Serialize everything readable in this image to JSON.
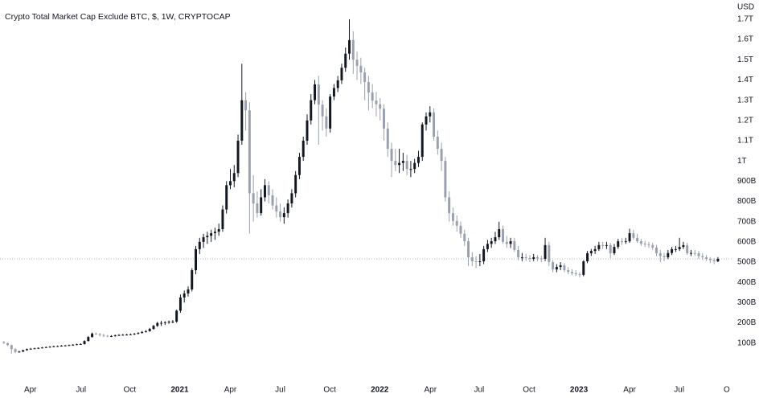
{
  "chart_data": {
    "type": "candlestick",
    "title": "Crypto Total Market Cap Exclude BTC, $, 1W, CRYPTOCAP",
    "y_axis_label": "USD",
    "up_color": "#131722",
    "down_color": "#9aa0ad",
    "grid": false,
    "last_price_line": true,
    "xlim": [
      -1,
      190
    ],
    "xticks": [
      {
        "value": 6.9,
        "label": "Apr"
      },
      {
        "value": 20.1,
        "label": "Jul"
      },
      {
        "value": 32.8,
        "label": "Oct"
      },
      {
        "value": 45.8,
        "label": "2021"
      },
      {
        "value": 59.0,
        "label": "Apr"
      },
      {
        "value": 72.0,
        "label": "Jul"
      },
      {
        "value": 84.9,
        "label": "Oct"
      },
      {
        "value": 97.9,
        "label": "2022"
      },
      {
        "value": 111.1,
        "label": "Apr"
      },
      {
        "value": 123.8,
        "label": "Jul"
      },
      {
        "value": 136.8,
        "label": "Oct"
      },
      {
        "value": 149.8,
        "label": "2023"
      },
      {
        "value": 163.0,
        "label": "Apr"
      },
      {
        "value": 175.9,
        "label": "Jul"
      },
      {
        "value": 188.3,
        "label": "O"
      }
    ],
    "ylim": [
      -72,
      1795
    ],
    "yticks": [
      {
        "value": 100,
        "label": "100B"
      },
      {
        "value": 200,
        "label": "200B"
      },
      {
        "value": 300,
        "label": "300B"
      },
      {
        "value": 400,
        "label": "400B"
      },
      {
        "value": 500,
        "label": "500B"
      },
      {
        "value": 600,
        "label": "600B"
      },
      {
        "value": 700,
        "label": "700B"
      },
      {
        "value": 800,
        "label": "800B"
      },
      {
        "value": 900,
        "label": "900B"
      },
      {
        "value": 1000,
        "label": "1T"
      },
      {
        "value": 1100,
        "label": "1.1T"
      },
      {
        "value": 1200,
        "label": "1.2T"
      },
      {
        "value": 1300,
        "label": "1.3T"
      },
      {
        "value": 1400,
        "label": "1.4T"
      },
      {
        "value": 1500,
        "label": "1.5T"
      },
      {
        "value": 1600,
        "label": "1.6T"
      },
      {
        "value": 1700,
        "label": "1.7T"
      }
    ],
    "ohlc": [
      [
        105,
        110,
        96,
        100
      ],
      [
        100,
        103,
        85,
        90
      ],
      [
        90,
        92,
        48,
        70
      ],
      [
        70,
        75,
        50,
        56
      ],
      [
        56,
        62,
        53,
        58
      ],
      [
        58,
        67,
        56,
        65
      ],
      [
        65,
        73,
        62,
        70
      ],
      [
        70,
        76,
        68,
        72
      ],
      [
        72,
        77,
        70,
        74
      ],
      [
        74,
        79,
        72,
        76
      ],
      [
        76,
        81,
        74,
        78
      ],
      [
        78,
        83,
        76,
        80
      ],
      [
        80,
        85,
        78,
        82
      ],
      [
        82,
        87,
        80,
        84
      ],
      [
        84,
        88,
        81,
        85
      ],
      [
        85,
        90,
        83,
        87
      ],
      [
        87,
        91,
        85,
        88
      ],
      [
        88,
        93,
        86,
        90
      ],
      [
        90,
        95,
        88,
        92
      ],
      [
        92,
        97,
        90,
        94
      ],
      [
        94,
        99,
        92,
        95
      ],
      [
        95,
        114,
        93,
        110
      ],
      [
        110,
        135,
        108,
        130
      ],
      [
        130,
        152,
        127,
        147
      ],
      [
        147,
        152,
        140,
        145
      ],
      [
        145,
        149,
        132,
        140
      ],
      [
        140,
        145,
        130,
        136
      ],
      [
        136,
        140,
        130,
        135
      ],
      [
        135,
        139,
        131,
        135
      ],
      [
        135,
        142,
        132,
        138
      ],
      [
        138,
        144,
        135,
        140
      ],
      [
        140,
        145,
        137,
        141
      ],
      [
        141,
        146,
        138,
        142
      ],
      [
        142,
        147,
        139,
        143
      ],
      [
        143,
        150,
        140,
        146
      ],
      [
        146,
        154,
        143,
        150
      ],
      [
        150,
        160,
        147,
        155
      ],
      [
        155,
        164,
        152,
        159
      ],
      [
        159,
        175,
        156,
        170
      ],
      [
        170,
        190,
        166,
        185
      ],
      [
        185,
        205,
        180,
        199
      ],
      [
        199,
        210,
        185,
        200
      ],
      [
        200,
        208,
        190,
        203
      ],
      [
        203,
        212,
        195,
        206
      ],
      [
        206,
        214,
        198,
        206
      ],
      [
        206,
        265,
        200,
        260
      ],
      [
        260,
        340,
        250,
        325
      ],
      [
        325,
        360,
        300,
        345
      ],
      [
        345,
        380,
        330,
        365
      ],
      [
        365,
        470,
        355,
        460
      ],
      [
        460,
        580,
        440,
        564
      ],
      [
        564,
        620,
        540,
        600
      ],
      [
        600,
        640,
        570,
        623
      ],
      [
        623,
        650,
        590,
        630
      ],
      [
        630,
        660,
        600,
        643
      ],
      [
        643,
        670,
        610,
        650
      ],
      [
        650,
        690,
        630,
        663
      ],
      [
        663,
        780,
        650,
        760
      ],
      [
        760,
        900,
        740,
        880
      ],
      [
        880,
        960,
        860,
        900
      ],
      [
        900,
        980,
        870,
        940
      ],
      [
        940,
        1130,
        920,
        1100
      ],
      [
        1100,
        1480,
        1080,
        1300
      ],
      [
        1300,
        1340,
        1150,
        1250
      ],
      [
        1250,
        1290,
        640,
        840
      ],
      [
        840,
        930,
        700,
        790
      ],
      [
        790,
        850,
        720,
        742
      ],
      [
        742,
        860,
        730,
        820
      ],
      [
        820,
        910,
        800,
        880
      ],
      [
        880,
        900,
        790,
        830
      ],
      [
        830,
        860,
        760,
        780
      ],
      [
        780,
        820,
        720,
        750
      ],
      [
        750,
        790,
        700,
        722
      ],
      [
        722,
        770,
        690,
        742
      ],
      [
        742,
        810,
        720,
        790
      ],
      [
        790,
        860,
        770,
        840
      ],
      [
        840,
        950,
        820,
        930
      ],
      [
        930,
        1040,
        910,
        1020
      ],
      [
        1020,
        1120,
        1000,
        1100
      ],
      [
        1100,
        1230,
        1080,
        1200
      ],
      [
        1200,
        1330,
        1180,
        1300
      ],
      [
        1300,
        1400,
        1280,
        1378
      ],
      [
        1378,
        1420,
        1080,
        1278
      ],
      [
        1278,
        1300,
        1150,
        1220
      ],
      [
        1220,
        1260,
        1120,
        1160
      ],
      [
        1160,
        1330,
        1140,
        1318
      ],
      [
        1318,
        1380,
        1300,
        1360
      ],
      [
        1360,
        1420,
        1340,
        1398
      ],
      [
        1398,
        1480,
        1380,
        1460
      ],
      [
        1460,
        1560,
        1440,
        1530
      ],
      [
        1530,
        1700,
        1500,
        1597
      ],
      [
        1597,
        1640,
        1430,
        1500
      ],
      [
        1500,
        1540,
        1400,
        1470
      ],
      [
        1470,
        1510,
        1380,
        1437
      ],
      [
        1437,
        1460,
        1300,
        1390
      ],
      [
        1390,
        1420,
        1250,
        1338
      ],
      [
        1338,
        1380,
        1260,
        1298
      ],
      [
        1298,
        1340,
        1220,
        1280
      ],
      [
        1280,
        1310,
        1200,
        1258
      ],
      [
        1258,
        1280,
        1100,
        1160
      ],
      [
        1160,
        1190,
        1020,
        1060
      ],
      [
        1060,
        1090,
        920,
        1000
      ],
      [
        1000,
        1060,
        950,
        980
      ],
      [
        980,
        1060,
        940,
        990
      ],
      [
        990,
        1040,
        950,
        1000
      ],
      [
        1000,
        1030,
        930,
        960
      ],
      [
        960,
        1000,
        920,
        960
      ],
      [
        960,
        1010,
        940,
        990
      ],
      [
        990,
        1050,
        970,
        1020
      ],
      [
        1020,
        1190,
        1000,
        1180
      ],
      [
        1180,
        1240,
        1150,
        1220
      ],
      [
        1220,
        1270,
        1190,
        1240
      ],
      [
        1240,
        1260,
        1100,
        1120
      ],
      [
        1120,
        1150,
        1030,
        1060
      ],
      [
        1060,
        1090,
        950,
        1000
      ],
      [
        1000,
        1020,
        800,
        820
      ],
      [
        820,
        850,
        700,
        742
      ],
      [
        742,
        770,
        680,
        703
      ],
      [
        703,
        730,
        650,
        680
      ],
      [
        680,
        700,
        620,
        640
      ],
      [
        640,
        660,
        580,
        603
      ],
      [
        603,
        620,
        480,
        524
      ],
      [
        524,
        550,
        480,
        504
      ],
      [
        504,
        530,
        470,
        500
      ],
      [
        500,
        540,
        480,
        504
      ],
      [
        504,
        580,
        490,
        564
      ],
      [
        564,
        610,
        550,
        590
      ],
      [
        590,
        620,
        570,
        603
      ],
      [
        603,
        650,
        590,
        623
      ],
      [
        623,
        700,
        610,
        663
      ],
      [
        663,
        680,
        590,
        600
      ],
      [
        600,
        630,
        570,
        590
      ],
      [
        590,
        620,
        570,
        603
      ],
      [
        603,
        620,
        550,
        560
      ],
      [
        560,
        580,
        510,
        524
      ],
      [
        524,
        545,
        505,
        524
      ],
      [
        524,
        540,
        505,
        520
      ],
      [
        520,
        535,
        500,
        516
      ],
      [
        516,
        540,
        505,
        524
      ],
      [
        524,
        535,
        505,
        518
      ],
      [
        518,
        530,
        500,
        516
      ],
      [
        516,
        620,
        505,
        584
      ],
      [
        584,
        600,
        480,
        500
      ],
      [
        500,
        510,
        450,
        464
      ],
      [
        464,
        490,
        450,
        476
      ],
      [
        476,
        500,
        460,
        484
      ],
      [
        484,
        495,
        450,
        460
      ],
      [
        460,
        475,
        440,
        452
      ],
      [
        452,
        465,
        435,
        445
      ],
      [
        445,
        460,
        432,
        440
      ],
      [
        440,
        450,
        425,
        437
      ],
      [
        437,
        510,
        430,
        504
      ],
      [
        504,
        555,
        495,
        544
      ],
      [
        544,
        565,
        530,
        555
      ],
      [
        555,
        580,
        540,
        564
      ],
      [
        564,
        600,
        555,
        584
      ],
      [
        584,
        600,
        565,
        580
      ],
      [
        580,
        600,
        565,
        584
      ],
      [
        584,
        595,
        520,
        544
      ],
      [
        544,
        590,
        535,
        575
      ],
      [
        575,
        615,
        565,
        603
      ],
      [
        603,
        620,
        585,
        600
      ],
      [
        600,
        620,
        590,
        603
      ],
      [
        603,
        665,
        595,
        643
      ],
      [
        643,
        660,
        610,
        620
      ],
      [
        620,
        640,
        595,
        603
      ],
      [
        603,
        615,
        580,
        591
      ],
      [
        591,
        605,
        575,
        588
      ],
      [
        588,
        600,
        570,
        584
      ],
      [
        584,
        595,
        560,
        572
      ],
      [
        572,
        585,
        530,
        544
      ],
      [
        544,
        560,
        500,
        530
      ],
      [
        530,
        545,
        505,
        524
      ],
      [
        524,
        560,
        515,
        545
      ],
      [
        545,
        575,
        535,
        564
      ],
      [
        564,
        580,
        550,
        564
      ],
      [
        564,
        620,
        555,
        575
      ],
      [
        575,
        600,
        565,
        584
      ],
      [
        584,
        595,
        535,
        544
      ],
      [
        544,
        560,
        530,
        545
      ],
      [
        545,
        560,
        530,
        544
      ],
      [
        544,
        555,
        515,
        530
      ],
      [
        530,
        545,
        510,
        524
      ],
      [
        524,
        535,
        505,
        516
      ],
      [
        516,
        525,
        495,
        510
      ],
      [
        510,
        520,
        490,
        504
      ],
      [
        504,
        525,
        500,
        516
      ]
    ]
  }
}
